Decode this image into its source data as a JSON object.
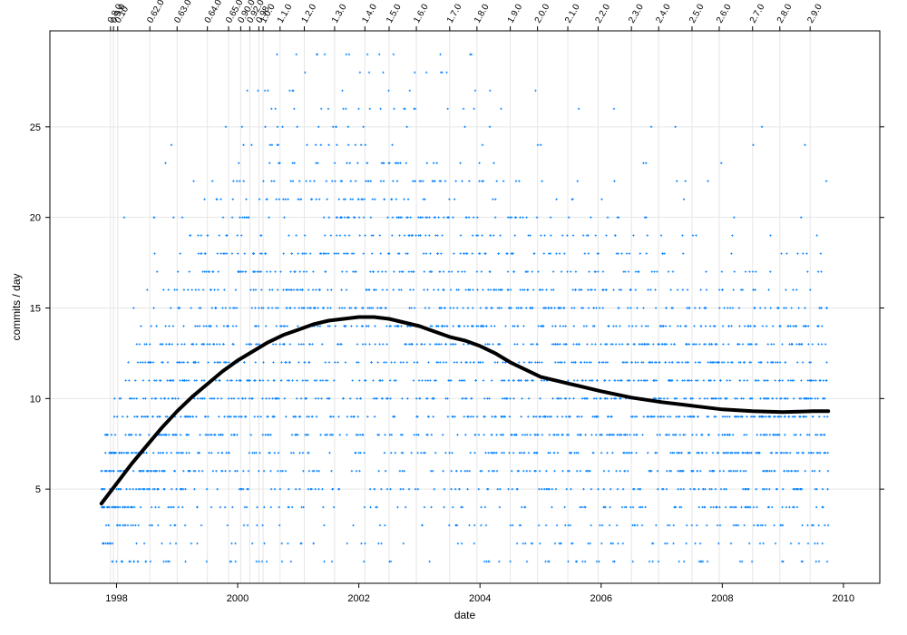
{
  "chart_data": {
    "type": "scatter",
    "xlabel": "date",
    "ylabel": "commits / day",
    "xlim": [
      1996.9,
      2010.6
    ],
    "ylim": [
      -0.2,
      30.3
    ],
    "x_ticks": [
      {
        "value": 1998,
        "label": "1998"
      },
      {
        "value": 2000,
        "label": "2000"
      },
      {
        "value": 2002,
        "label": "2002"
      },
      {
        "value": 2004,
        "label": "2004"
      },
      {
        "value": 2006,
        "label": "2006"
      },
      {
        "value": 2008,
        "label": "2008"
      },
      {
        "value": 2010,
        "label": "2010"
      }
    ],
    "y_ticks": [
      {
        "value": 5,
        "label": "5"
      },
      {
        "value": 10,
        "label": "10"
      },
      {
        "value": 15,
        "label": "15"
      },
      {
        "value": 20,
        "label": "20"
      },
      {
        "value": 25,
        "label": "25"
      }
    ],
    "grid": true,
    "point_color": "#0080ff",
    "curve_color": "#000000",
    "point_x_range": [
      1997.75,
      2009.75
    ],
    "smooth_curve": [
      {
        "x": 1997.75,
        "y": 4.2
      },
      {
        "x": 1998.0,
        "y": 5.3
      },
      {
        "x": 1998.25,
        "y": 6.4
      },
      {
        "x": 1998.5,
        "y": 7.4
      },
      {
        "x": 1998.75,
        "y": 8.4
      },
      {
        "x": 1999.0,
        "y": 9.3
      },
      {
        "x": 1999.25,
        "y": 10.1
      },
      {
        "x": 1999.5,
        "y": 10.8
      },
      {
        "x": 1999.75,
        "y": 11.5
      },
      {
        "x": 2000.0,
        "y": 12.1
      },
      {
        "x": 2000.25,
        "y": 12.6
      },
      {
        "x": 2000.5,
        "y": 13.1
      },
      {
        "x": 2000.75,
        "y": 13.5
      },
      {
        "x": 2001.0,
        "y": 13.8
      },
      {
        "x": 2001.25,
        "y": 14.1
      },
      {
        "x": 2001.5,
        "y": 14.3
      },
      {
        "x": 2001.75,
        "y": 14.4
      },
      {
        "x": 2002.0,
        "y": 14.5
      },
      {
        "x": 2002.25,
        "y": 14.5
      },
      {
        "x": 2002.5,
        "y": 14.4
      },
      {
        "x": 2002.75,
        "y": 14.2
      },
      {
        "x": 2003.0,
        "y": 14.0
      },
      {
        "x": 2003.25,
        "y": 13.7
      },
      {
        "x": 2003.5,
        "y": 13.4
      },
      {
        "x": 2003.75,
        "y": 13.2
      },
      {
        "x": 2004.0,
        "y": 12.9
      },
      {
        "x": 2004.25,
        "y": 12.5
      },
      {
        "x": 2004.5,
        "y": 12.0
      },
      {
        "x": 2004.75,
        "y": 11.6
      },
      {
        "x": 2005.0,
        "y": 11.2
      },
      {
        "x": 2005.5,
        "y": 10.8
      },
      {
        "x": 2006.0,
        "y": 10.4
      },
      {
        "x": 2006.5,
        "y": 10.05
      },
      {
        "x": 2007.0,
        "y": 9.8
      },
      {
        "x": 2007.5,
        "y": 9.6
      },
      {
        "x": 2008.0,
        "y": 9.4
      },
      {
        "x": 2008.5,
        "y": 9.3
      },
      {
        "x": 2009.0,
        "y": 9.25
      },
      {
        "x": 2009.5,
        "y": 9.3
      },
      {
        "x": 2009.75,
        "y": 9.3
      }
    ],
    "releases": [
      {
        "label": "0.8.0",
        "x": 1997.9
      },
      {
        "label": "0.9.0",
        "x": 1997.95
      },
      {
        "label": "0.10",
        "x": 1998.02
      },
      {
        "label": "0.62.0",
        "x": 1998.55
      },
      {
        "label": "0.63.0",
        "x": 1999.0
      },
      {
        "label": "0.64.0",
        "x": 1999.5
      },
      {
        "label": "0.65.0",
        "x": 1999.85
      },
      {
        "label": "0.90.0",
        "x": 2000.05
      },
      {
        "label": "0.92.0",
        "x": 2000.2
      },
      {
        "label": "0.98",
        "x": 2000.35
      },
      {
        "label": "1.0.0",
        "x": 2000.42
      },
      {
        "label": "1.1.0",
        "x": 2000.7
      },
      {
        "label": "1.2.0",
        "x": 2001.1
      },
      {
        "label": "1.3.0",
        "x": 2001.6
      },
      {
        "label": "1.4.0",
        "x": 2002.1
      },
      {
        "label": "1.5.0",
        "x": 2002.5
      },
      {
        "label": "1.6.0",
        "x": 2002.95
      },
      {
        "label": "1.7.0",
        "x": 2003.5
      },
      {
        "label": "1.8.0",
        "x": 2003.95
      },
      {
        "label": "1.9.0",
        "x": 2004.5
      },
      {
        "label": "2.0.0",
        "x": 2004.95
      },
      {
        "label": "2.1.0",
        "x": 2005.45
      },
      {
        "label": "2.2.0",
        "x": 2005.95
      },
      {
        "label": "2.3.0",
        "x": 2006.5
      },
      {
        "label": "2.4.0",
        "x": 2006.95
      },
      {
        "label": "2.5.0",
        "x": 2007.5
      },
      {
        "label": "2.6.0",
        "x": 2007.95
      },
      {
        "label": "2.7.0",
        "x": 2008.5
      },
      {
        "label": "2.8.0",
        "x": 2008.95
      },
      {
        "label": "2.9.0",
        "x": 2009.45
      }
    ]
  }
}
